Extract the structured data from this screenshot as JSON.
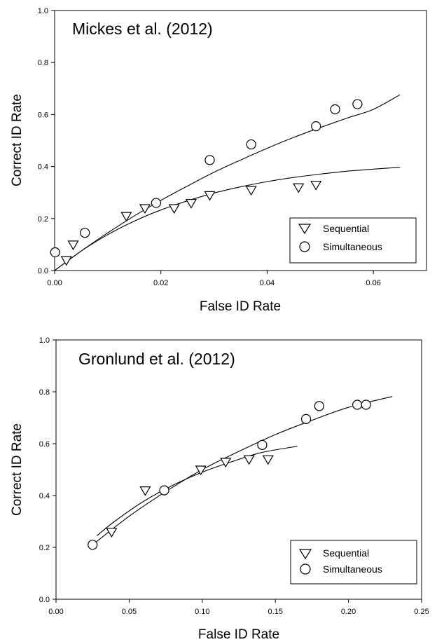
{
  "chart_data": [
    {
      "type": "scatter",
      "title": "Mickes et al. (2012)",
      "xlabel": "False ID Rate",
      "ylabel": "Correct ID Rate",
      "xlim": [
        0,
        0.07
      ],
      "ylim": [
        0,
        1.0
      ],
      "x_ticks": [
        "0.00",
        "0.02",
        "0.04",
        "0.06"
      ],
      "x_tick_values": [
        0,
        0.02,
        0.04,
        0.06
      ],
      "y_ticks": [
        "0.0",
        "0.2",
        "0.4",
        "0.6",
        "0.8",
        "1.0"
      ],
      "y_tick_values": [
        0,
        0.2,
        0.4,
        0.6,
        0.8,
        1.0
      ],
      "legend_position": "bottom-right",
      "grid": false,
      "series": [
        {
          "name": "Sequential",
          "marker": "triangle-down",
          "points": [
            [
              0.0022,
              0.04
            ],
            [
              0.0035,
              0.1
            ],
            [
              0.0135,
              0.21
            ],
            [
              0.017,
              0.24
            ],
            [
              0.0225,
              0.24
            ],
            [
              0.0257,
              0.26
            ],
            [
              0.0292,
              0.29
            ],
            [
              0.037,
              0.31
            ],
            [
              0.0459,
              0.32
            ],
            [
              0.0492,
              0.33
            ]
          ],
          "fit_curve": [
            [
              0,
              0
            ],
            [
              0.005,
              0.075
            ],
            [
              0.01,
              0.138
            ],
            [
              0.015,
              0.19
            ],
            [
              0.02,
              0.233
            ],
            [
              0.025,
              0.268
            ],
            [
              0.03,
              0.298
            ],
            [
              0.035,
              0.322
            ],
            [
              0.04,
              0.342
            ],
            [
              0.045,
              0.358
            ],
            [
              0.05,
              0.371
            ],
            [
              0.055,
              0.382
            ],
            [
              0.06,
              0.39
            ],
            [
              0.065,
              0.397
            ]
          ]
        },
        {
          "name": "Simultaneous",
          "marker": "circle",
          "points": [
            [
              0.0001,
              0.07
            ],
            [
              0.0057,
              0.145
            ],
            [
              0.0191,
              0.26
            ],
            [
              0.0292,
              0.425
            ],
            [
              0.037,
              0.485
            ],
            [
              0.0492,
              0.555
            ],
            [
              0.0528,
              0.62
            ],
            [
              0.057,
              0.64
            ]
          ],
          "fit_curve": [
            [
              0,
              0
            ],
            [
              0.005,
              0.075
            ],
            [
              0.01,
              0.145
            ],
            [
              0.015,
              0.21
            ],
            [
              0.02,
              0.27
            ],
            [
              0.025,
              0.325
            ],
            [
              0.03,
              0.378
            ],
            [
              0.035,
              0.425
            ],
            [
              0.04,
              0.47
            ],
            [
              0.045,
              0.512
            ],
            [
              0.05,
              0.55
            ],
            [
              0.055,
              0.586
            ],
            [
              0.06,
              0.62
            ],
            [
              0.065,
              0.676
            ]
          ]
        }
      ]
    },
    {
      "type": "scatter",
      "title": "Gronlund et al. (2012)",
      "xlabel": "False ID Rate",
      "ylabel": "Correct ID Rate",
      "xlim": [
        0,
        0.25
      ],
      "ylim": [
        0,
        1.0
      ],
      "x_ticks": [
        "0.00",
        "0.05",
        "0.10",
        "0.15",
        "0.20",
        "0.25"
      ],
      "x_tick_values": [
        0,
        0.05,
        0.1,
        0.15,
        0.2,
        0.25
      ],
      "y_ticks": [
        "0.0",
        "0.2",
        "0.4",
        "0.6",
        "0.8",
        "1.0"
      ],
      "y_tick_values": [
        0,
        0.2,
        0.4,
        0.6,
        0.8,
        1.0
      ],
      "legend_position": "bottom-right",
      "grid": false,
      "series": [
        {
          "name": "Sequential",
          "marker": "triangle-down",
          "points": [
            [
              0.038,
              0.26
            ],
            [
              0.061,
              0.42
            ],
            [
              0.099,
              0.5
            ],
            [
              0.116,
              0.53
            ],
            [
              0.132,
              0.54
            ],
            [
              0.145,
              0.54
            ]
          ],
          "fit_curve": [
            [
              0.028,
              0.245
            ],
            [
              0.04,
              0.3
            ],
            [
              0.06,
              0.378
            ],
            [
              0.08,
              0.44
            ],
            [
              0.1,
              0.49
            ],
            [
              0.12,
              0.53
            ],
            [
              0.14,
              0.565
            ],
            [
              0.165,
              0.59
            ]
          ]
        },
        {
          "name": "Simultaneous",
          "marker": "circle",
          "points": [
            [
              0.025,
              0.21
            ],
            [
              0.074,
              0.42
            ],
            [
              0.141,
              0.595
            ],
            [
              0.171,
              0.695
            ],
            [
              0.18,
              0.745
            ],
            [
              0.206,
              0.75
            ],
            [
              0.212,
              0.75
            ]
          ],
          "fit_curve": [
            [
              0.025,
              0.21
            ],
            [
              0.05,
              0.32
            ],
            [
              0.075,
              0.415
            ],
            [
              0.1,
              0.5
            ],
            [
              0.125,
              0.57
            ],
            [
              0.15,
              0.635
            ],
            [
              0.175,
              0.69
            ],
            [
              0.2,
              0.74
            ],
            [
              0.23,
              0.782
            ]
          ]
        }
      ]
    }
  ]
}
